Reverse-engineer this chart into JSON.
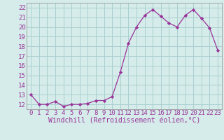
{
  "hours": [
    0,
    1,
    2,
    3,
    4,
    5,
    6,
    7,
    8,
    9,
    10,
    11,
    12,
    13,
    14,
    15,
    16,
    17,
    18,
    19,
    20,
    21,
    22,
    23
  ],
  "values": [
    13.0,
    12.0,
    12.0,
    12.3,
    11.8,
    12.0,
    12.0,
    12.1,
    12.4,
    12.4,
    12.8,
    15.3,
    18.3,
    20.0,
    21.2,
    21.8,
    21.1,
    20.4,
    20.0,
    21.2,
    21.8,
    20.9,
    19.9,
    17.6
  ],
  "line_color": "#993399",
  "marker": "D",
  "marker_size": 2.2,
  "bg_color": "#d5ecea",
  "grid_color": "#aacfcf",
  "xlabel": "Windchill (Refroidissement éolien,°C)",
  "ylim": [
    11.5,
    22.5
  ],
  "xlim": [
    -0.5,
    23.5
  ],
  "yticks": [
    12,
    13,
    14,
    15,
    16,
    17,
    18,
    19,
    20,
    21,
    22
  ],
  "xticks": [
    0,
    1,
    2,
    3,
    4,
    5,
    6,
    7,
    8,
    9,
    10,
    11,
    12,
    13,
    14,
    15,
    16,
    17,
    18,
    19,
    20,
    21,
    22,
    23
  ],
  "xlabel_fontsize": 7,
  "tick_fontsize": 6.5,
  "label_color": "#993399"
}
